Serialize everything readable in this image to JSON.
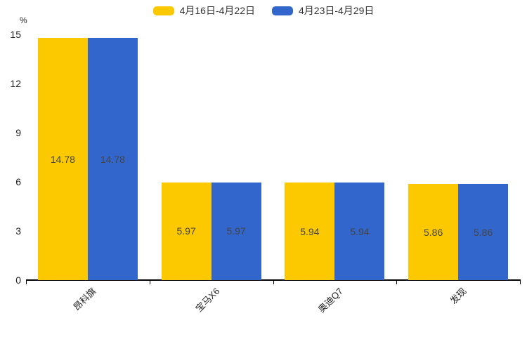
{
  "chart_data": {
    "type": "bar",
    "title": "",
    "categories": [
      "昂科旗",
      "宝马X6",
      "奥迪Q7",
      "发现"
    ],
    "series": [
      {
        "name": "4月16日-4月22日",
        "color": "#FCC800",
        "values": [
          14.78,
          5.97,
          5.94,
          5.86
        ]
      },
      {
        "name": "4月23日-4月29日",
        "color": "#3366CC",
        "values": [
          14.78,
          5.97,
          5.94,
          5.86
        ]
      }
    ],
    "value_labels": {
      "position": "inside-center",
      "color": "#444444",
      "format": "2-decimals"
    },
    "xlabel": "",
    "ylabel": "%",
    "ylim": [
      0,
      15
    ],
    "yticks": [
      0,
      3,
      6,
      9,
      12,
      15
    ],
    "x_label_rotation_deg": 45,
    "grid": false,
    "legend_position": "top-center",
    "axis_color": "#000000",
    "background_color": "#ffffff"
  }
}
